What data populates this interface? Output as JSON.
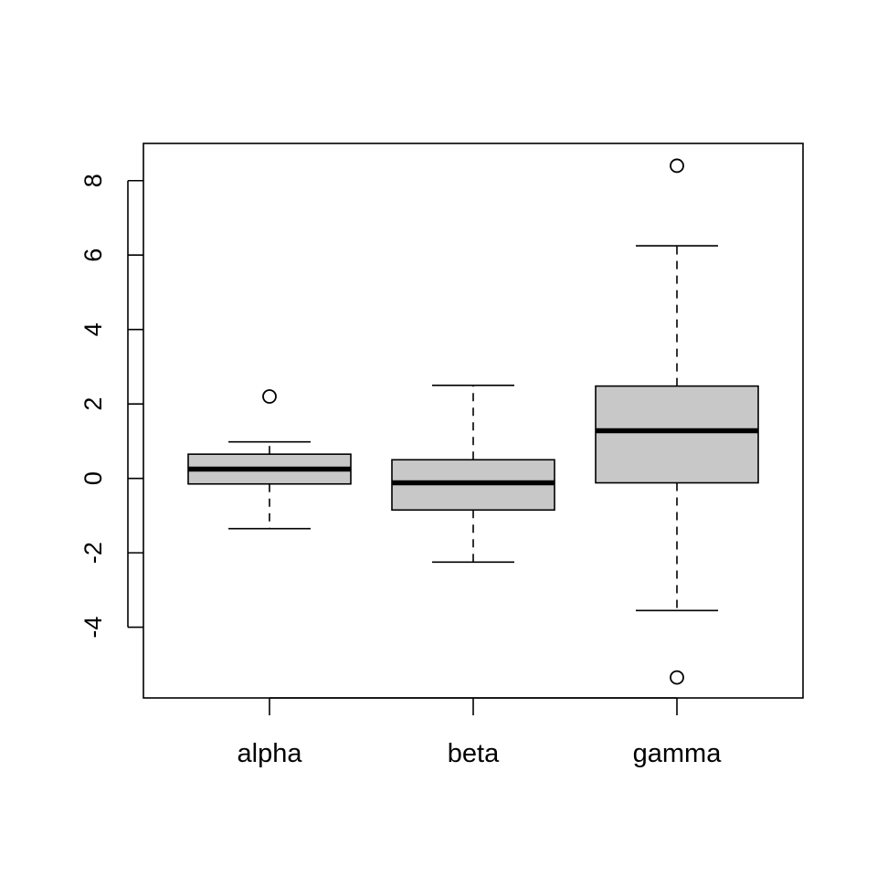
{
  "chart_data": {
    "type": "boxplot",
    "title": "",
    "xlabel": "",
    "ylabel": "",
    "categories": [
      "alpha",
      "beta",
      "gamma"
    ],
    "boxes": [
      {
        "category": "alpha",
        "whisker_low": -1.35,
        "q1": -0.15,
        "median": 0.25,
        "q3": 0.65,
        "whisker_high": 0.98,
        "outliers": [
          2.2
        ]
      },
      {
        "category": "beta",
        "whisker_low": -2.25,
        "q1": -0.85,
        "median": -0.12,
        "q3": 0.5,
        "whisker_high": 2.5,
        "outliers": []
      },
      {
        "category": "gamma",
        "whisker_low": -3.55,
        "q1": -0.12,
        "median": 1.28,
        "q3": 2.48,
        "whisker_high": 6.25,
        "outliers": [
          8.4,
          -5.35
        ]
      }
    ],
    "y_ticks": [
      -4,
      -2,
      0,
      2,
      4,
      6,
      8
    ],
    "ylim": [
      -5.9,
      9.0
    ],
    "grid": false,
    "legend": "none",
    "colors": {
      "box_fill": "#c8c8c8",
      "stroke": "#000000",
      "background": "#ffffff"
    }
  }
}
